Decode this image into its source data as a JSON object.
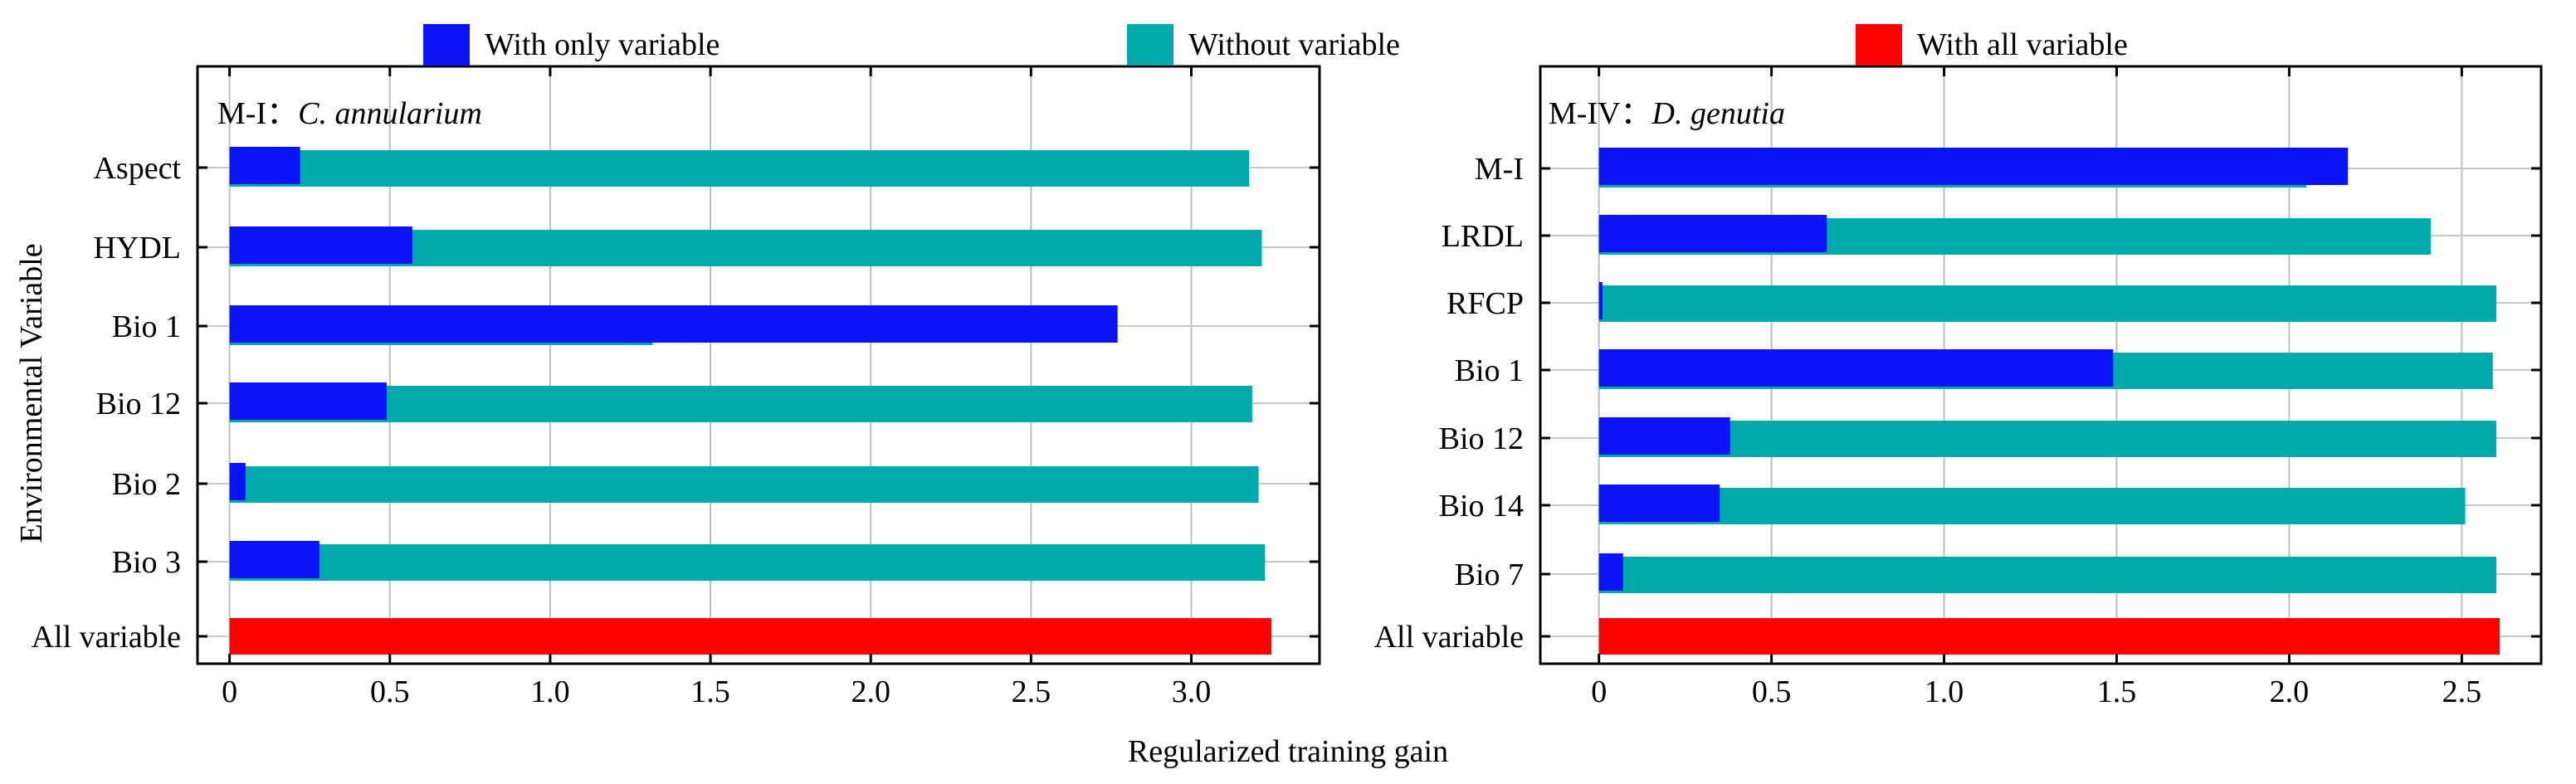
{
  "legend": {
    "items": [
      {
        "label": "With only variable",
        "color": "#0a14f5"
      },
      {
        "label": "Without variable",
        "color": "#00aaaa"
      },
      {
        "label": "With all variable",
        "color": "#ff0000"
      }
    ]
  },
  "axes": {
    "xlabel": "Regularized training gain",
    "ylabel": "Environmental Variable"
  },
  "chart_data": [
    {
      "type": "bar",
      "orientation": "horizontal",
      "title_prefix": "M-I：",
      "title_species": "C. annularium",
      "xlim": [
        -0.1,
        3.4
      ],
      "xticks": [
        0,
        0.5,
        1.0,
        1.5,
        2.0,
        2.5,
        3.0
      ],
      "xtick_labels": [
        "0",
        "0.5",
        "1.0",
        "1.5",
        "2.0",
        "2.5",
        "3.0"
      ],
      "categories": [
        "Aspect",
        "HYDL",
        "Bio 1",
        "Bio 12",
        "Bio 2",
        "Bio 3",
        "All variable"
      ],
      "series": [
        {
          "name": "Without variable",
          "values": [
            3.18,
            3.22,
            1.32,
            3.19,
            3.21,
            3.23,
            null
          ]
        },
        {
          "name": "With only variable",
          "values": [
            0.22,
            0.57,
            2.77,
            0.49,
            0.05,
            0.28,
            null
          ]
        },
        {
          "name": "With all variable",
          "values": [
            null,
            null,
            null,
            null,
            null,
            null,
            3.25
          ]
        }
      ]
    },
    {
      "type": "bar",
      "orientation": "horizontal",
      "title_prefix": "M-IV：",
      "title_species": "D. genutia",
      "xlim": [
        -0.17,
        2.73
      ],
      "xticks": [
        0,
        0.5,
        1.0,
        1.5,
        2.0,
        2.5
      ],
      "xtick_labels": [
        "0",
        "0.5",
        "1.0",
        "1.5",
        "2.0",
        "2.5"
      ],
      "categories": [
        "M-I",
        "LRDL",
        "RFCP",
        "Bio 1",
        "Bio 12",
        "Bio 14",
        "Bio 7",
        "All variable"
      ],
      "series": [
        {
          "name": "Without variable",
          "values": [
            2.05,
            2.41,
            2.6,
            2.59,
            2.6,
            2.51,
            2.6,
            null
          ]
        },
        {
          "name": "With only variable",
          "values": [
            2.17,
            0.66,
            0.01,
            1.49,
            0.38,
            0.35,
            0.07,
            null
          ]
        },
        {
          "name": "With all variable",
          "values": [
            null,
            null,
            null,
            null,
            null,
            null,
            null,
            2.61
          ]
        }
      ]
    }
  ]
}
